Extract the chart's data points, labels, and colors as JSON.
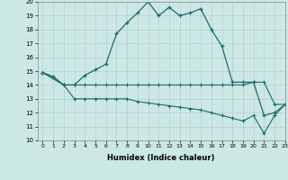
{
  "title": "",
  "xlabel": "Humidex (Indice chaleur)",
  "xlim": [
    -0.5,
    23
  ],
  "ylim": [
    10,
    20
  ],
  "xticks": [
    0,
    1,
    2,
    3,
    4,
    5,
    6,
    7,
    8,
    9,
    10,
    11,
    12,
    13,
    14,
    15,
    16,
    17,
    18,
    19,
    20,
    21,
    22,
    23
  ],
  "yticks": [
    10,
    11,
    12,
    13,
    14,
    15,
    16,
    17,
    18,
    19,
    20
  ],
  "background_color": "#cce8e4",
  "line_color": "#1a6b6b",
  "grid_color": "#b0c8c8",
  "line1_x": [
    0,
    1,
    2,
    3,
    4,
    5,
    6,
    7,
    8,
    9,
    10,
    11,
    12,
    13,
    14,
    15,
    16,
    17,
    18,
    19,
    20,
    21,
    22,
    23
  ],
  "line1_y": [
    14.9,
    14.6,
    14.0,
    14.0,
    14.7,
    15.1,
    15.5,
    17.7,
    18.5,
    19.2,
    20.0,
    19.0,
    19.6,
    19.0,
    19.2,
    19.5,
    18.0,
    16.8,
    14.2,
    14.2,
    14.2,
    11.8,
    12.0,
    12.6
  ],
  "line2_x": [
    0,
    2,
    3,
    4,
    5,
    6,
    7,
    8,
    9,
    10,
    11,
    12,
    13,
    14,
    15,
    16,
    17,
    18,
    19,
    20,
    21,
    22,
    23
  ],
  "line2_y": [
    14.9,
    14.0,
    14.0,
    14.0,
    14.0,
    14.0,
    14.0,
    14.0,
    14.0,
    14.0,
    14.0,
    14.0,
    14.0,
    14.0,
    14.0,
    14.0,
    14.0,
    14.0,
    14.0,
    14.2,
    14.2,
    12.6,
    12.6
  ],
  "line3_x": [
    0,
    2,
    3,
    4,
    5,
    6,
    7,
    8,
    9,
    10,
    11,
    12,
    13,
    14,
    15,
    16,
    17,
    18,
    19,
    20,
    21,
    22,
    23
  ],
  "line3_y": [
    14.9,
    14.0,
    13.0,
    13.0,
    13.0,
    13.0,
    13.0,
    13.0,
    12.8,
    12.7,
    12.6,
    12.5,
    12.4,
    12.3,
    12.2,
    12.0,
    11.8,
    11.6,
    11.4,
    11.8,
    10.5,
    11.8,
    12.6
  ]
}
